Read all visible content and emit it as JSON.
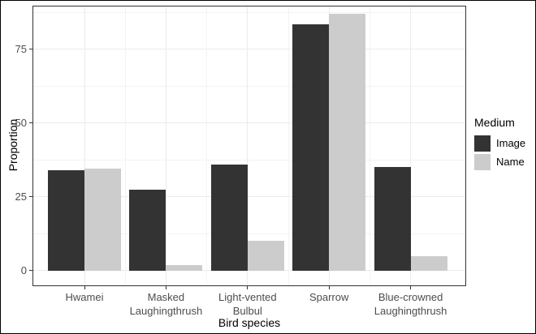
{
  "chart_data": {
    "type": "bar",
    "group_mode": "dodged",
    "title": "",
    "xlabel": "Bird species",
    "ylabel": "Proportion",
    "categories": [
      "Hwamei",
      "Masked Laughingthrush",
      "Light-vented Bulbul",
      "Sparrow",
      "Blue-crowned Laughingthrush"
    ],
    "category_labels": [
      "Hwamei",
      "Masked\nLaughingthrush",
      "Light-vented\nBulbul",
      "Sparrow",
      "Blue-crowned\nLaughingthrush"
    ],
    "series": [
      {
        "name": "Image",
        "color": "#333333",
        "values": [
          34,
          27.5,
          36,
          83.5,
          35
        ]
      },
      {
        "name": "Name",
        "color": "#CCCCCC",
        "values": [
          34.5,
          2,
          10,
          87,
          5
        ]
      }
    ],
    "yticks": [
      0,
      25,
      50,
      75
    ],
    "minor_gridlines": [
      12.5,
      37.5,
      62.5,
      87.5
    ],
    "ylim": [
      -5,
      89.5
    ],
    "grid": true,
    "legend": {
      "title": "Medium",
      "position": "right",
      "entries": [
        "Image",
        "Name"
      ]
    },
    "theme": {
      "grid_major": "#EBEBEB",
      "grid_minor": "#F3F3F3",
      "panel_border": "#333333",
      "axis_text": "#4D4D4D",
      "tick_color": "#333333",
      "title_text": "#000000",
      "background": "#FFFFFF"
    }
  }
}
